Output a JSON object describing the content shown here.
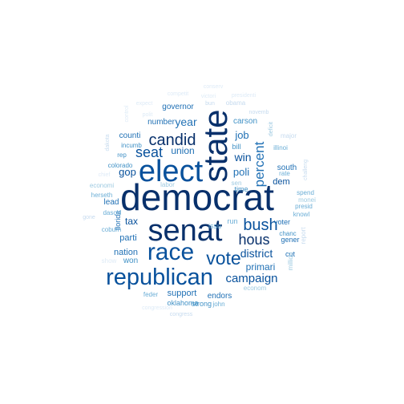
{
  "word_cloud": {
    "palette": [
      "#08306b",
      "#08519c",
      "#2171b5",
      "#4292c6",
      "#6baed6",
      "#9ecae1",
      "#c6dbef",
      "#deebf7"
    ],
    "words": [
      {
        "text": "democrat",
        "weight": 1.0
      },
      {
        "text": "state",
        "weight": 0.93
      },
      {
        "text": "elect",
        "weight": 0.88
      },
      {
        "text": "senat",
        "weight": 0.86
      },
      {
        "text": "republican",
        "weight": 0.78
      },
      {
        "text": "race",
        "weight": 0.76
      },
      {
        "text": "vote",
        "weight": 0.6
      },
      {
        "text": "candid",
        "weight": 0.52
      },
      {
        "text": "bush",
        "weight": 0.52
      },
      {
        "text": "hous",
        "weight": 0.48
      },
      {
        "text": "percent",
        "weight": 0.46
      },
      {
        "text": "seat",
        "weight": 0.45
      },
      {
        "text": "campaign",
        "weight": 0.44
      },
      {
        "text": "district",
        "weight": 0.42
      },
      {
        "text": "year",
        "weight": 0.4
      },
      {
        "text": "win",
        "weight": 0.38
      },
      {
        "text": "poli",
        "weight": 0.37
      },
      {
        "text": "job",
        "weight": 0.36
      },
      {
        "text": "gop",
        "weight": 0.35
      },
      {
        "text": "union",
        "weight": 0.33
      },
      {
        "text": "tax",
        "weight": 0.31
      },
      {
        "text": "primari",
        "weight": 0.31
      },
      {
        "text": "parti",
        "weight": 0.3
      },
      {
        "text": "support",
        "weight": 0.3
      },
      {
        "text": "nation",
        "weight": 0.29
      },
      {
        "text": "dem",
        "weight": 0.28
      },
      {
        "text": "governor",
        "weight": 0.27
      },
      {
        "text": "number",
        "weight": 0.26
      },
      {
        "text": "carson",
        "weight": 0.26
      },
      {
        "text": "won",
        "weight": 0.26
      },
      {
        "text": "lead",
        "weight": 0.25
      },
      {
        "text": "south",
        "weight": 0.25
      },
      {
        "text": "counti",
        "weight": 0.24
      },
      {
        "text": "endors",
        "weight": 0.24
      },
      {
        "text": "oklahoma",
        "weight": 0.23
      },
      {
        "text": "strong",
        "weight": 0.23
      },
      {
        "text": "voter",
        "weight": 0.23
      },
      {
        "text": "gener",
        "weight": 0.23
      },
      {
        "text": "bill",
        "weight": 0.22
      },
      {
        "text": "time",
        "weight": 0.22
      },
      {
        "text": "florida",
        "weight": 0.22
      },
      {
        "text": "issu",
        "weight": 0.21
      },
      {
        "text": "run",
        "weight": 0.21
      },
      {
        "text": "cut",
        "weight": 0.21
      },
      {
        "text": "colorado",
        "weight": 0.2
      },
      {
        "text": "incumb",
        "weight": 0.2
      },
      {
        "text": "rep",
        "weight": 0.2
      },
      {
        "text": "feder",
        "weight": 0.2
      },
      {
        "text": "john",
        "weight": 0.2
      },
      {
        "text": "chanc",
        "weight": 0.2
      },
      {
        "text": "herseth",
        "weight": 0.19
      },
      {
        "text": "coburn",
        "weight": 0.19
      },
      {
        "text": "spend",
        "weight": 0.19
      },
      {
        "text": "presid",
        "weight": 0.19
      },
      {
        "text": "knowl",
        "weight": 0.19
      },
      {
        "text": "monei",
        "weight": 0.18
      },
      {
        "text": "illinoi",
        "weight": 0.18
      },
      {
        "text": "rate",
        "weight": 0.18
      },
      {
        "text": "million",
        "weight": 0.18
      },
      {
        "text": "report",
        "weight": 0.17
      },
      {
        "text": "sen",
        "weight": 0.17
      },
      {
        "text": "econom",
        "weight": 0.17
      },
      {
        "text": "economi",
        "weight": 0.17
      },
      {
        "text": "labor",
        "weight": 0.17
      },
      {
        "text": "show",
        "weight": 0.16
      },
      {
        "text": "gone",
        "weight": 0.16
      },
      {
        "text": "daschl",
        "weight": 0.16
      },
      {
        "text": "dakota",
        "weight": 0.16
      },
      {
        "text": "chief",
        "weight": 0.16
      },
      {
        "text": "major",
        "weight": 0.16
      },
      {
        "text": "deficit",
        "weight": 0.16
      },
      {
        "text": "challeng",
        "weight": 0.16
      },
      {
        "text": "obama",
        "weight": 0.16
      },
      {
        "text": "novemb",
        "weight": 0.16
      },
      {
        "text": "bun",
        "weight": 0.15
      },
      {
        "text": "polit",
        "weight": 0.15
      },
      {
        "text": "victori",
        "weight": 0.15
      },
      {
        "text": "competit",
        "weight": 0.15
      },
      {
        "text": "presidenti",
        "weight": 0.15
      },
      {
        "text": "conserv",
        "weight": 0.14
      },
      {
        "text": "expect",
        "weight": 0.14
      },
      {
        "text": "congress",
        "weight": 0.14
      },
      {
        "text": "congression",
        "weight": 0.14
      },
      {
        "text": "control",
        "weight": 0.14
      }
    ]
  }
}
